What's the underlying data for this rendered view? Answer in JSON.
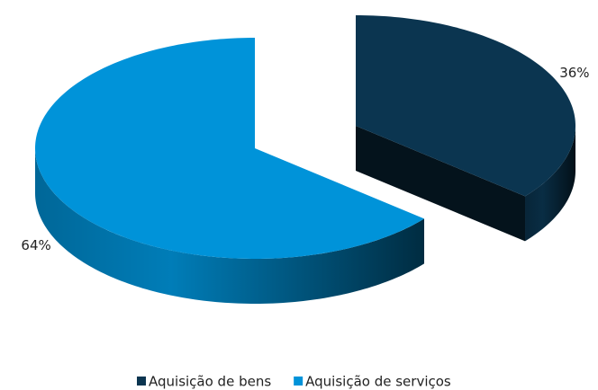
{
  "chart_data": {
    "type": "pie",
    "categories": [
      "Aquisição de bens",
      "Aquisição de serviços"
    ],
    "values": [
      36,
      64
    ],
    "value_labels": [
      "36%",
      "64%"
    ],
    "colors": [
      "#0b3550",
      "#0093d9"
    ],
    "legend": "bottom"
  }
}
